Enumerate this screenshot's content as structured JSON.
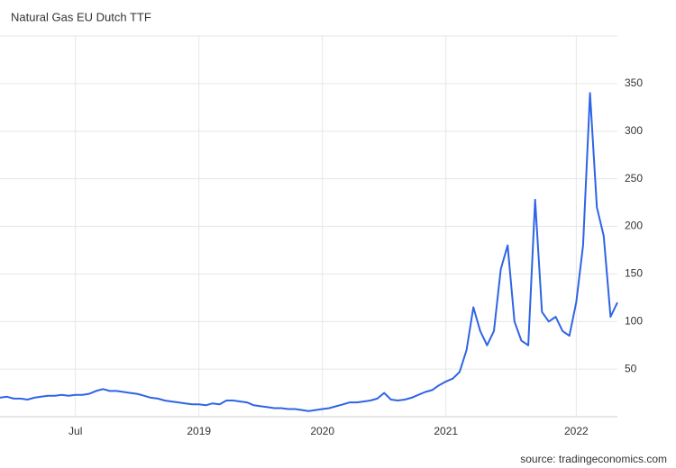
{
  "chart_data": {
    "type": "line",
    "title": "Natural Gas EU Dutch TTF",
    "source": "source: tradingeconomics.com",
    "categories": [
      null,
      null,
      null,
      null,
      null,
      null,
      null,
      null,
      null,
      null,
      null,
      "Jul",
      null,
      null,
      null,
      null,
      null,
      null,
      null,
      null,
      null,
      null,
      null,
      null,
      null,
      null,
      null,
      null,
      null,
      "2019",
      null,
      null,
      null,
      null,
      null,
      null,
      null,
      null,
      null,
      null,
      null,
      null,
      null,
      null,
      null,
      null,
      null,
      "2020",
      null,
      null,
      null,
      null,
      null,
      null,
      null,
      null,
      null,
      null,
      null,
      null,
      null,
      null,
      null,
      null,
      null,
      "2021",
      null,
      null,
      null,
      null,
      null,
      null,
      null,
      null,
      null,
      null,
      null,
      null,
      null,
      null,
      null,
      null,
      null,
      null,
      "2022",
      null,
      null,
      null,
      null,
      null,
      null
    ],
    "values": [
      20,
      21,
      19,
      19,
      18,
      20,
      21,
      22,
      22,
      23,
      22,
      23,
      23,
      24,
      27,
      29,
      27,
      27,
      26,
      25,
      24,
      22,
      20,
      19,
      17,
      16,
      15,
      14,
      13,
      13,
      12,
      14,
      13,
      17,
      17,
      16,
      15,
      12,
      11,
      10,
      9,
      9,
      8,
      8,
      7,
      6,
      7,
      8,
      9,
      11,
      13,
      15,
      15,
      16,
      17,
      19,
      25,
      18,
      17,
      18,
      20,
      23,
      26,
      28,
      33,
      37,
      40,
      47,
      70,
      115,
      90,
      75,
      90,
      155,
      180,
      100,
      80,
      75,
      228,
      110,
      100,
      105,
      90,
      85,
      120,
      180,
      340,
      220,
      190,
      105,
      120
    ],
    "color": "#2f64e6",
    "ylim": [
      0,
      400
    ],
    "yticks": [
      50,
      100,
      150,
      200,
      250,
      300,
      350
    ],
    "grid": true
  }
}
